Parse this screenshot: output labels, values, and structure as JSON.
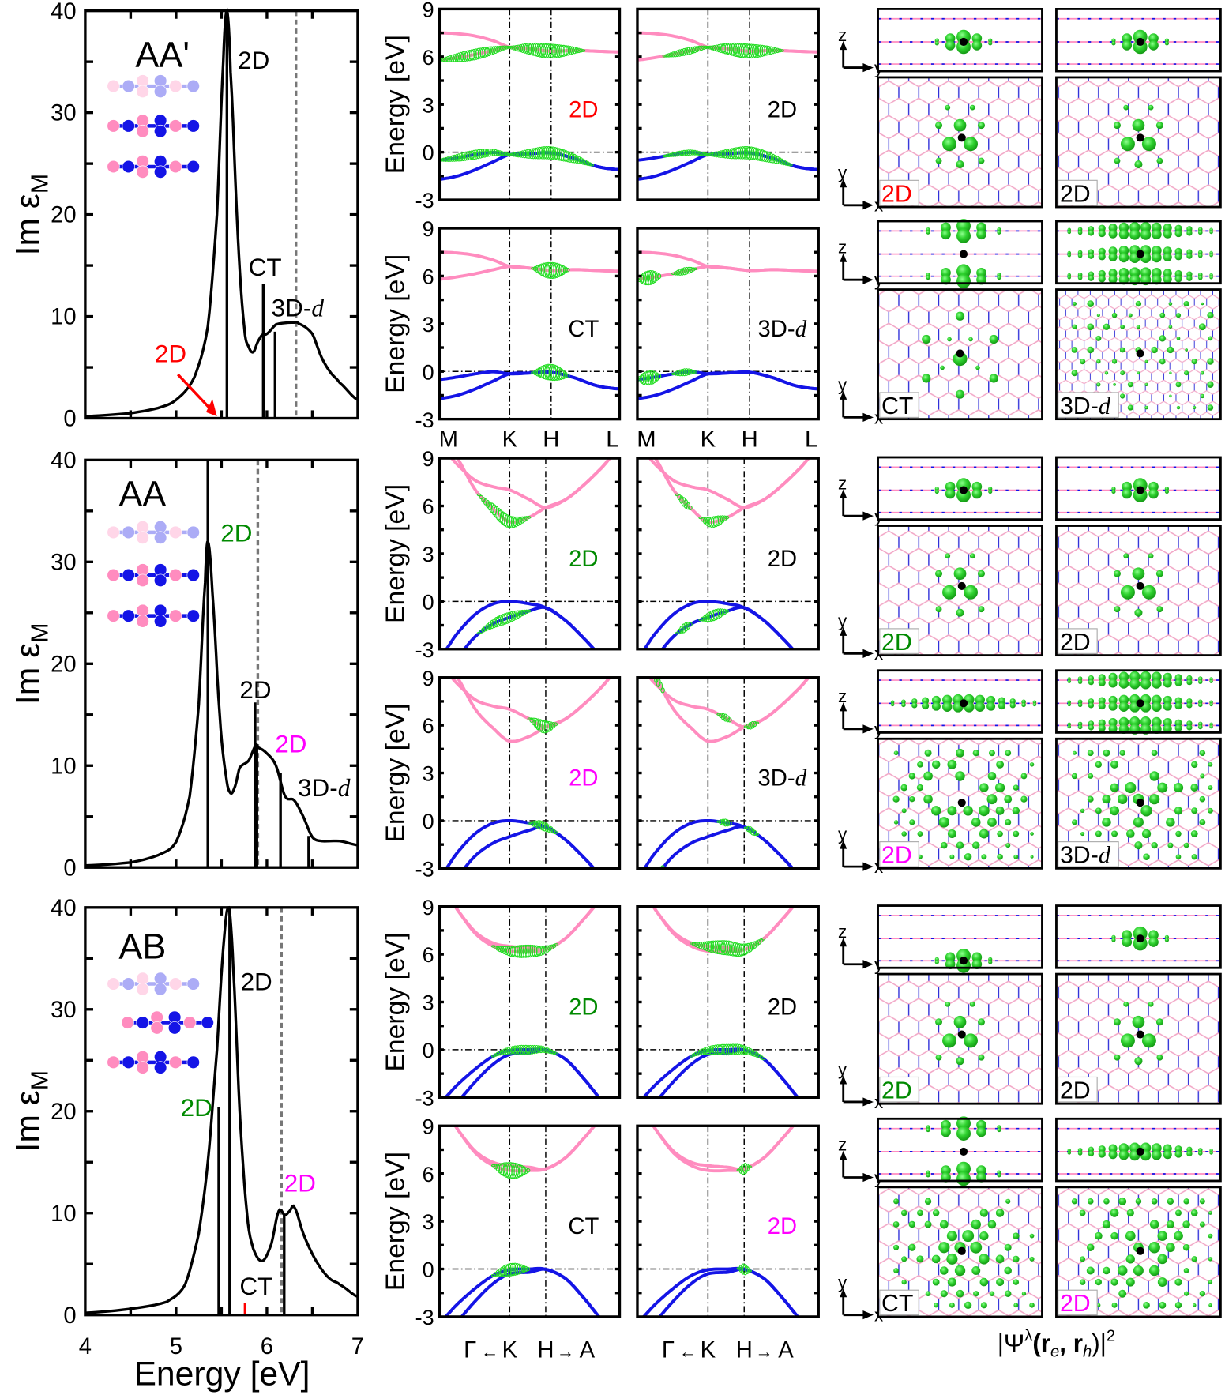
{
  "colors": {
    "valence": "#1414e6",
    "conduction": "#ff8cbf",
    "exciton": "#22dd22",
    "red": "#ff0000",
    "green": "#008a00",
    "magenta": "#ff00ff",
    "black": "#000000",
    "dashed": "#777777"
  },
  "axis_labels": {
    "spectrum_y": "Im ε",
    "spectrum_y_sub": "M",
    "spectrum_x": "Energy [eV]",
    "band_y": "Energy [eV]"
  },
  "chart_data": [
    {
      "type": "line",
      "stacking": "AA'",
      "xlim": [
        4,
        7
      ],
      "ylim": [
        0,
        40
      ],
      "xticks": [
        "4",
        "5",
        "6",
        "7"
      ],
      "yticks": [
        "0",
        "10",
        "20",
        "30",
        "40"
      ],
      "curve": [
        [
          4,
          0.2
        ],
        [
          4.5,
          0.5
        ],
        [
          4.8,
          1
        ],
        [
          5.0,
          1.8
        ],
        [
          5.2,
          4
        ],
        [
          5.35,
          9
        ],
        [
          5.45,
          20
        ],
        [
          5.52,
          35
        ],
        [
          5.56,
          40
        ],
        [
          5.6,
          34
        ],
        [
          5.68,
          18
        ],
        [
          5.75,
          9
        ],
        [
          5.8,
          7
        ],
        [
          5.85,
          6.5
        ],
        [
          5.9,
          7.5
        ],
        [
          5.95,
          8.2
        ],
        [
          6.0,
          8.3
        ],
        [
          6.1,
          9.2
        ],
        [
          6.3,
          9.4
        ],
        [
          6.35,
          9.3
        ],
        [
          6.5,
          8.3
        ],
        [
          6.6,
          6
        ],
        [
          6.7,
          4.5
        ],
        [
          6.8,
          3.5
        ],
        [
          7.0,
          1.8
        ]
      ],
      "excitons": [
        {
          "energy": 5.56,
          "intensity": 40,
          "color": "#000000"
        },
        {
          "energy": 5.96,
          "intensity": 13.2,
          "color": "#000000"
        },
        {
          "energy": 6.09,
          "intensity": 8.5,
          "color": "#000000"
        }
      ],
      "dashed_line_energy": 6.32,
      "labels": [
        {
          "text": "AA'"
        },
        {
          "text": "2D",
          "color": "#000000"
        },
        {
          "text": "CT",
          "color": "#000000"
        },
        {
          "text": "3D-",
          "italic": "d",
          "color": "#000000"
        },
        {
          "text": "2D",
          "color": "#ff0000"
        }
      ]
    },
    {
      "type": "line",
      "stacking": "AA",
      "xlim": [
        4,
        7
      ],
      "ylim": [
        0,
        40
      ],
      "xticks": [
        "4",
        "5",
        "6",
        "7"
      ],
      "yticks": [
        "0",
        "10",
        "20",
        "30",
        "40"
      ],
      "curve": [
        [
          4,
          0.2
        ],
        [
          4.5,
          0.5
        ],
        [
          4.8,
          1.2
        ],
        [
          5.0,
          2.5
        ],
        [
          5.15,
          7
        ],
        [
          5.25,
          16
        ],
        [
          5.32,
          28
        ],
        [
          5.35,
          32
        ],
        [
          5.4,
          27
        ],
        [
          5.48,
          15
        ],
        [
          5.55,
          9
        ],
        [
          5.6,
          7.3
        ],
        [
          5.65,
          8
        ],
        [
          5.7,
          9.8
        ],
        [
          5.8,
          10.5
        ],
        [
          5.88,
          12
        ],
        [
          5.9,
          11.8
        ],
        [
          6.0,
          11.2
        ],
        [
          6.1,
          10
        ],
        [
          6.2,
          7
        ],
        [
          6.3,
          6.6
        ],
        [
          6.4,
          5
        ],
        [
          6.5,
          3
        ],
        [
          6.6,
          2.6
        ],
        [
          6.8,
          2.6
        ],
        [
          7.0,
          2.2
        ]
      ],
      "excitons": [
        {
          "energy": 5.35,
          "intensity": 40,
          "color": "#000000"
        },
        {
          "energy": 5.87,
          "intensity": 16.2,
          "color": "#000000"
        },
        {
          "energy": 5.89,
          "intensity": 12,
          "color": "#000000"
        },
        {
          "energy": 6.15,
          "intensity": 9.3,
          "color": "#000000"
        },
        {
          "energy": 6.46,
          "intensity": 3.1,
          "color": "#000000"
        }
      ],
      "dashed_line_energy": 5.9,
      "labels": [
        {
          "text": "AA"
        },
        {
          "text": "2D",
          "color": "#008a00"
        },
        {
          "text": "2D",
          "color": "#000000"
        },
        {
          "text": "2D",
          "color": "#ff00ff"
        },
        {
          "text": "3D-",
          "italic": "d",
          "color": "#000000"
        }
      ]
    },
    {
      "type": "line",
      "stacking": "AB",
      "xlim": [
        4,
        7
      ],
      "ylim": [
        0,
        40
      ],
      "xticks": [
        "4",
        "5",
        "6",
        "7"
      ],
      "yticks": [
        "0",
        "10",
        "20",
        "30",
        "40"
      ],
      "curve": [
        [
          4,
          0.2
        ],
        [
          4.5,
          0.6
        ],
        [
          4.9,
          1.3
        ],
        [
          5.1,
          3
        ],
        [
          5.25,
          8
        ],
        [
          5.35,
          15
        ],
        [
          5.45,
          26
        ],
        [
          5.52,
          36
        ],
        [
          5.58,
          40
        ],
        [
          5.63,
          34
        ],
        [
          5.7,
          20
        ],
        [
          5.78,
          10
        ],
        [
          5.85,
          6.5
        ],
        [
          5.95,
          5.3
        ],
        [
          6.05,
          7
        ],
        [
          6.13,
          10.2
        ],
        [
          6.2,
          9.8
        ],
        [
          6.25,
          10.2
        ],
        [
          6.3,
          10.6
        ],
        [
          6.4,
          8
        ],
        [
          6.5,
          6
        ],
        [
          6.6,
          4.5
        ],
        [
          6.7,
          3.5
        ],
        [
          6.8,
          3
        ],
        [
          7.0,
          1.8
        ]
      ],
      "excitons": [
        {
          "energy": 5.47,
          "intensity": 20.4,
          "color": "#000000"
        },
        {
          "energy": 5.59,
          "intensity": 40,
          "color": "#000000"
        },
        {
          "energy": 6.19,
          "intensity": 9.8,
          "color": "#000000"
        },
        {
          "energy": 5.76,
          "intensity": 1.2,
          "color": "#ff0000"
        }
      ],
      "dashed_line_energy": 6.16,
      "labels": [
        {
          "text": "AB"
        },
        {
          "text": "2D",
          "color": "#000000"
        },
        {
          "text": "2D",
          "color": "#008a00"
        },
        {
          "text": "2D",
          "color": "#ff00ff"
        },
        {
          "text": "CT",
          "color": "#000000"
        }
      ]
    },
    {
      "type": "line",
      "stacking": "AA'",
      "kind": "band-structure",
      "ylim": [
        -3,
        9
      ],
      "yticks": [
        "9",
        "6",
        "3",
        "0",
        "-3"
      ],
      "kpath": {
        "labels": [
          "M",
          "K",
          "H",
          "L"
        ],
        "k": [
          0,
          0.39,
          0.62,
          1
        ]
      },
      "k": [
        0,
        0.1,
        0.2,
        0.3,
        0.39,
        0.5,
        0.62,
        0.75,
        0.875,
        1
      ],
      "bands": [
        {
          "kind": "conduction",
          "energies": [
            7.5,
            7.45,
            7.3,
            7.0,
            6.6,
            6.5,
            6.35,
            6.4,
            6.35,
            6.3
          ]
        },
        {
          "kind": "conduction",
          "energies": [
            5.8,
            5.95,
            6.15,
            6.4,
            6.6,
            6.5,
            6.35,
            6.4,
            6.35,
            6.3
          ]
        },
        {
          "kind": "valence",
          "energies": [
            -0.5,
            -0.35,
            -0.15,
            -0.02,
            -0.15,
            -0.1,
            -0.05,
            -0.4,
            -0.9,
            -1.1
          ]
        },
        {
          "kind": "valence",
          "energies": [
            -1.7,
            -1.5,
            -1.1,
            -0.6,
            -0.15,
            -0.1,
            -0.05,
            -0.4,
            -0.9,
            -1.1
          ]
        }
      ],
      "panels": [
        {
          "label": {
            "text": "2D",
            "color": "#ff0000"
          },
          "exciton_weights": [
            [
              1,
              0,
              0.39,
              5
            ],
            [
              0,
              0.39,
              0.8,
              7
            ],
            [
              2,
              0,
              0.39,
              4
            ],
            [
              2,
              0.39,
              0.85,
              6
            ]
          ]
        },
        {
          "label": {
            "text": "2D",
            "color": "#000000"
          },
          "exciton_weights": [
            [
              1,
              0.15,
              0.39,
              3
            ],
            [
              0,
              0.39,
              0.8,
              7
            ],
            [
              2,
              0.15,
              0.39,
              2
            ],
            [
              2,
              0.39,
              0.85,
              6
            ]
          ]
        },
        {
          "label": {
            "text": "CT",
            "color": "#000000"
          },
          "exciton_weights": [
            [
              0,
              0.52,
              0.72,
              8
            ],
            [
              2,
              0.52,
              0.72,
              8
            ]
          ]
        },
        {
          "label": {
            "text": "3D-",
            "italic": "d",
            "color": "#000000"
          },
          "exciton_weights": [
            [
              1,
              0,
              0.13,
              7
            ],
            [
              1,
              0.2,
              0.32,
              3
            ],
            [
              2,
              0,
              0.13,
              7
            ],
            [
              2,
              0.2,
              0.32,
              3
            ]
          ]
        }
      ]
    },
    {
      "type": "line",
      "stacking": "AA",
      "kind": "band-structure",
      "ylim": [
        -3,
        9
      ],
      "yticks": [
        "9",
        "6",
        "3",
        "0",
        "-3"
      ],
      "kpath": {
        "labels": [
          "Γ",
          "K",
          "H",
          "A"
        ],
        "k": [
          0,
          0.39,
          0.59,
          1
        ],
        "arrows": [
          "←",
          "→"
        ]
      },
      "k": [
        0,
        0.1,
        0.2,
        0.3,
        0.39,
        0.5,
        0.59,
        0.7,
        0.8,
        0.9,
        1
      ],
      "bands": [
        {
          "kind": "conduction",
          "energies": [
            9.8,
            8.6,
            7.6,
            7.2,
            7.0,
            6.4,
            5.9,
            6.4,
            7.3,
            8.4,
            9.6
          ]
        },
        {
          "kind": "conduction",
          "energies": [
            10.5,
            9.0,
            7.0,
            5.8,
            5.0,
            5.3,
            5.9,
            6.4,
            7.3,
            8.4,
            9.6
          ]
        },
        {
          "kind": "valence",
          "energies": [
            -3.5,
            -2.0,
            -0.8,
            -0.15,
            0,
            -0.15,
            -0.4,
            -1.2,
            -2.3,
            -3.5,
            -4.5
          ]
        },
        {
          "kind": "valence",
          "energies": [
            -4.5,
            -3.5,
            -2.2,
            -1.4,
            -1.0,
            -0.6,
            -0.4,
            -1.2,
            -2.3,
            -3.5,
            -4.5
          ]
        }
      ],
      "panels": [
        {
          "label": {
            "text": "2D",
            "color": "#008a00"
          },
          "exciton_weights": [
            [
              1,
              0.22,
              0.5,
              6
            ],
            [
              3,
              0.22,
              0.5,
              5
            ]
          ]
        },
        {
          "label": {
            "text": "2D",
            "color": "#000000"
          },
          "exciton_weights": [
            [
              1,
              0.22,
              0.3,
              4
            ],
            [
              1,
              0.35,
              0.5,
              5
            ],
            [
              3,
              0.22,
              0.3,
              4
            ],
            [
              3,
              0.35,
              0.5,
              5
            ]
          ]
        },
        {
          "label": {
            "text": "2D",
            "color": "#ff00ff"
          },
          "exciton_weights": [
            [
              0,
              0.5,
              0.65,
              6
            ],
            [
              2,
              0.5,
              0.65,
              4
            ]
          ]
        },
        {
          "label": {
            "text": "3D-",
            "italic": "d",
            "color": "#000000"
          },
          "exciton_weights": [
            [
              1,
              0.08,
              0.15,
              4
            ],
            [
              0,
              0.45,
              0.52,
              3
            ],
            [
              0,
              0.6,
              0.66,
              3
            ],
            [
              3,
              0.08,
              0.15,
              4
            ],
            [
              2,
              0.45,
              0.52,
              3
            ],
            [
              2,
              0.6,
              0.66,
              3
            ]
          ]
        }
      ]
    },
    {
      "type": "line",
      "stacking": "AB",
      "kind": "band-structure",
      "ylim": [
        -3,
        9
      ],
      "yticks": [
        "9",
        "6",
        "3",
        "0",
        "-3"
      ],
      "kpath": {
        "labels": [
          "Γ",
          "K",
          "H",
          "A"
        ],
        "k": [
          0,
          0.39,
          0.59,
          1
        ],
        "arrows": [
          "←",
          "→"
        ]
      },
      "k": [
        0,
        0.1,
        0.2,
        0.3,
        0.39,
        0.5,
        0.59,
        0.7,
        0.8,
        0.9,
        1
      ],
      "bands": [
        {
          "kind": "conduction",
          "energies": [
            10.5,
            8.8,
            7.4,
            6.7,
            6.5,
            6.4,
            6.3,
            7.0,
            8.2,
            9.5,
            10.5
          ]
        },
        {
          "kind": "conduction",
          "energies": [
            10.5,
            8.8,
            7.3,
            6.5,
            6.2,
            6.2,
            6.3,
            7.0,
            8.2,
            9.5,
            10.5
          ]
        },
        {
          "kind": "valence",
          "energies": [
            -3.3,
            -2.2,
            -1.2,
            -0.4,
            -0.05,
            0,
            -0.02,
            -0.6,
            -1.8,
            -3.2,
            -4.5
          ]
        },
        {
          "kind": "valence",
          "energies": [
            -4.5,
            -3.3,
            -2.0,
            -0.9,
            -0.3,
            -0.2,
            -0.02,
            -0.6,
            -1.8,
            -3.2,
            -4.5
          ]
        }
      ],
      "panels": [
        {
          "label": {
            "text": "2D",
            "color": "#008a00"
          },
          "exciton_weights": [
            [
              1,
              0.3,
              0.65,
              6
            ],
            [
              2,
              0.3,
              0.65,
              4
            ]
          ]
        },
        {
          "label": {
            "text": "2D",
            "color": "#000000"
          },
          "exciton_weights": [
            [
              0,
              0.3,
              0.7,
              7
            ],
            [
              2,
              0.3,
              0.7,
              5
            ]
          ]
        },
        {
          "label": {
            "text": "CT",
            "color": "#000000"
          },
          "exciton_weights": [
            [
              1,
              0.3,
              0.5,
              8
            ],
            [
              2,
              0.3,
              0.5,
              6
            ]
          ]
        },
        {
          "label": {
            "text": "2D",
            "color": "#ff00ff"
          },
          "exciton_weights": [
            [
              1,
              0.56,
              0.62,
              5
            ],
            [
              2,
              0.56,
              0.62,
              5
            ]
          ]
        }
      ]
    }
  ],
  "wavefunctions": {
    "axes": {
      "z": "z",
      "y": "y",
      "x": "x"
    },
    "rows": [
      [
        {
          "text": "2D",
          "color": "#ff0000"
        },
        {
          "text": "2D",
          "color": "#000000"
        }
      ],
      [
        {
          "text": "CT",
          "color": "#000000"
        },
        {
          "text": "3D-",
          "italic": "d",
          "color": "#000000"
        }
      ],
      [
        {
          "text": "2D",
          "color": "#008a00"
        },
        {
          "text": "2D",
          "color": "#000000"
        }
      ],
      [
        {
          "text": "2D",
          "color": "#ff00ff"
        },
        {
          "text": "3D-",
          "italic": "d",
          "color": "#000000"
        }
      ],
      [
        {
          "text": "2D",
          "color": "#008a00"
        },
        {
          "text": "2D",
          "color": "#000000"
        }
      ],
      [
        {
          "text": "CT",
          "color": "#000000"
        },
        {
          "text": "2D",
          "color": "#ff00ff"
        }
      ]
    ],
    "caption": {
      "open": "|Ψ",
      "sup": "λ",
      "r_e": "(r",
      "sub_e": "e",
      "r_h": ", r",
      "sub_h": "h",
      "close": ")|",
      "power": "2"
    }
  }
}
